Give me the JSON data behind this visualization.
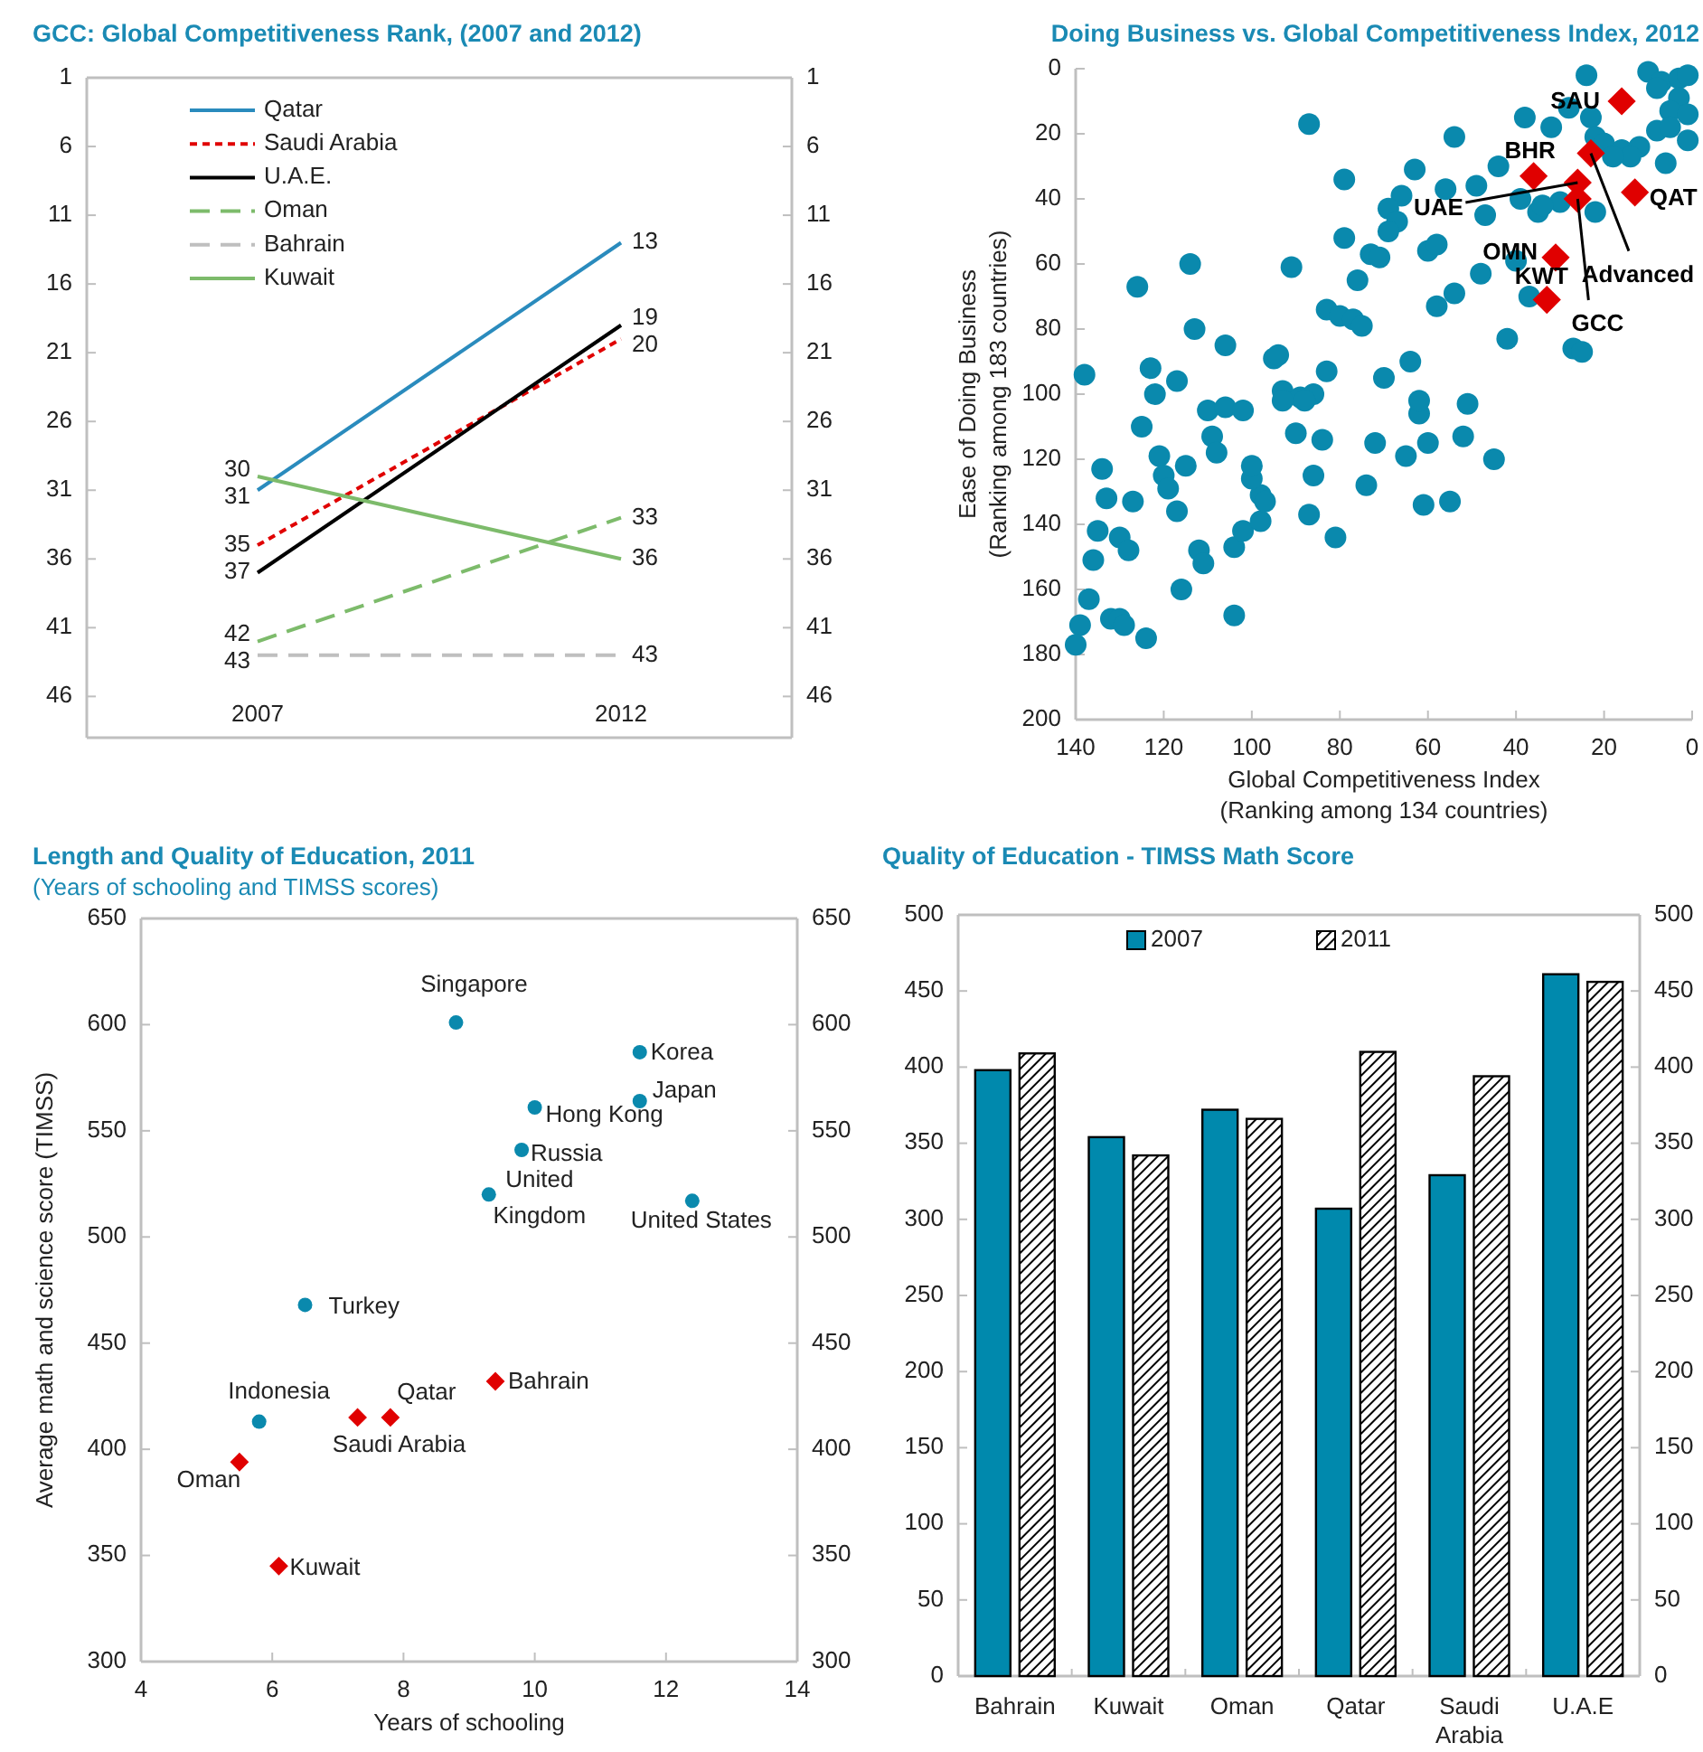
{
  "chart_data": [
    {
      "type": "line",
      "title": "GCC: Global Competitiveness Rank, (2007 and 2012)",
      "categories": [
        "2007",
        "2012"
      ],
      "ylim": [
        49,
        1
      ],
      "yticks": [
        1,
        6,
        11,
        16,
        21,
        26,
        31,
        36,
        41,
        46
      ],
      "y2lim": [
        49,
        1
      ],
      "y2ticks": [
        1,
        6,
        11,
        16,
        21,
        26,
        31,
        36,
        41,
        46
      ],
      "legend": "top left",
      "data_labels": true,
      "series": [
        {
          "name": "Qatar",
          "color": "#2a8bbd",
          "values": [
            31,
            13
          ],
          "line_style": "solid"
        },
        {
          "name": "Saudi Arabia",
          "color": "#e00000",
          "values": [
            35,
            20
          ],
          "line_style": "dotted"
        },
        {
          "name": "U.A.E.",
          "color": "#000000",
          "values": [
            37,
            19
          ],
          "line_style": "solid"
        },
        {
          "name": "Oman",
          "color": "#7dbb6b",
          "values": [
            42,
            33
          ],
          "line_style": "dashed"
        },
        {
          "name": "Bahrain",
          "color": "#bfbfbf",
          "values": [
            43,
            43
          ],
          "line_style": "dashed"
        },
        {
          "name": "Kuwait",
          "color": "#7dbb6b",
          "values": [
            30,
            36
          ],
          "line_style": "solid"
        }
      ]
    },
    {
      "type": "scatter",
      "title": "Doing Business vs. Global Competitiveness Index, 2012",
      "xlabel": "Global Competitiveness Index\n(Ranking among 134 countries)",
      "ylabel": "Ease of Doing Business\n(Ranking among 183 countries)",
      "xlim": [
        140,
        0
      ],
      "xticks": [
        140,
        120,
        100,
        80,
        60,
        40,
        20,
        0
      ],
      "ylim": [
        200,
        0
      ],
      "yticks": [
        0,
        20,
        40,
        60,
        80,
        100,
        120,
        140,
        160,
        180,
        200
      ],
      "series": [
        {
          "color": "#0a89ad",
          "marker": "circle",
          "x": [
            24,
            10,
            7,
            3,
            1,
            8,
            3,
            5,
            1,
            28,
            23,
            38,
            32,
            22,
            20,
            16,
            12,
            8,
            5,
            1,
            6,
            14,
            18,
            87,
            54,
            63,
            44,
            79,
            56,
            49,
            39,
            35,
            30,
            22,
            34,
            66,
            69,
            67,
            69,
            79,
            73,
            71,
            60,
            58,
            47,
            40,
            48,
            54,
            58,
            37,
            76,
            91,
            114,
            126,
            113,
            106,
            83,
            80,
            77,
            75,
            42,
            27,
            25,
            138,
            123,
            122,
            117,
            95,
            94,
            83,
            70,
            64,
            51,
            93,
            89,
            86,
            110,
            106,
            102,
            62,
            125,
            109,
            108,
            121,
            120,
            119,
            115,
            134,
            133,
            127,
            135,
            130,
            128,
            136,
            137,
            139,
            140,
            132,
            130,
            129,
            124,
            116,
            112,
            111,
            117,
            104,
            102,
            98,
            98,
            97,
            100,
            100,
            93,
            88,
            90,
            84,
            86,
            87,
            81,
            74,
            72,
            65,
            62,
            60,
            61,
            55,
            52,
            45,
            104
          ],
          "values": [
            2,
            1,
            4,
            3,
            2,
            6,
            9,
            13,
            14,
            12,
            15,
            15,
            18,
            21,
            23,
            25,
            24,
            19,
            18,
            22,
            29,
            27,
            27,
            17,
            21,
            31,
            30,
            34,
            37,
            36,
            40,
            44,
            41,
            44,
            42,
            39,
            43,
            47,
            50,
            52,
            57,
            58,
            56,
            54,
            45,
            59,
            63,
            69,
            73,
            70,
            65,
            61,
            60,
            67,
            80,
            85,
            74,
            76,
            77,
            79,
            83,
            86,
            87,
            94,
            92,
            100,
            96,
            89,
            88,
            93,
            95,
            90,
            103,
            99,
            101,
            100,
            105,
            104,
            105,
            106,
            110,
            113,
            118,
            119,
            125,
            129,
            122,
            123,
            132,
            133,
            142,
            144,
            148,
            151,
            163,
            171,
            177,
            169,
            169,
            171,
            175,
            160,
            148,
            152,
            136,
            147,
            142,
            139,
            131,
            133,
            126,
            122,
            102,
            102,
            112,
            114,
            125,
            137,
            144,
            128,
            115,
            119,
            102,
            115,
            134,
            133,
            113,
            120,
            168
          ]
        },
        {
          "color": "#e00000",
          "marker": "diamond",
          "x": [
            16,
            36,
            26,
            13,
            31,
            33,
            23,
            26
          ],
          "values": [
            10,
            33,
            35,
            38,
            58,
            71,
            26,
            40
          ]
        }
      ],
      "annotations": [
        {
          "text": "SAU",
          "x": 16,
          "y": 10
        },
        {
          "text": "BHR",
          "x": 36,
          "y": 33
        },
        {
          "text": "UAE",
          "x": 26,
          "y": 35
        },
        {
          "text": "QAT",
          "x": 13,
          "y": 38
        },
        {
          "text": "OMN",
          "x": 31,
          "y": 58
        },
        {
          "text": "KWT",
          "x": 33,
          "y": 71
        },
        {
          "text": "Advanced",
          "x": 23,
          "y": 26
        },
        {
          "text": "GCC",
          "x": 26,
          "y": 40
        }
      ]
    },
    {
      "type": "scatter",
      "title": "Length and Quality of Education, 2011",
      "subtitle": "(Years of schooling and TIMSS scores)",
      "xlabel": "Years of schooling",
      "ylabel": "Average math and science score (TIMSS)",
      "xlim": [
        4,
        14
      ],
      "xticks": [
        4,
        6,
        8,
        10,
        12,
        14
      ],
      "ylim": [
        300,
        650
      ],
      "yticks": [
        300,
        350,
        400,
        450,
        500,
        550,
        600,
        650
      ],
      "y2lim": [
        300,
        650
      ],
      "y2ticks": [
        300,
        350,
        400,
        450,
        500,
        550,
        600,
        650
      ],
      "series": [
        {
          "color": "#0a89ad",
          "marker": "circle",
          "x": [
            8.8,
            11.6,
            11.6,
            10.0,
            9.8,
            9.3,
            12.4,
            6.5,
            5.8
          ],
          "values": [
            601,
            587,
            564,
            561,
            541,
            520,
            517,
            468,
            413
          ]
        },
        {
          "color": "#e00000",
          "marker": "diamond",
          "x": [
            9.4,
            7.8,
            7.3,
            5.5,
            6.1
          ],
          "values": [
            432,
            415,
            415,
            394,
            345
          ]
        }
      ],
      "annotations": [
        {
          "text": "Singapore",
          "x": 8.8,
          "y": 601
        },
        {
          "text": "Korea",
          "x": 11.6,
          "y": 587
        },
        {
          "text": "Japan",
          "x": 11.6,
          "y": 564
        },
        {
          "text": "Hong Kong",
          "x": 10.0,
          "y": 561
        },
        {
          "text": "Russia",
          "x": 9.8,
          "y": 541
        },
        {
          "text": "United\nKingdom",
          "x": 9.3,
          "y": 520
        },
        {
          "text": "United States",
          "x": 12.4,
          "y": 517
        },
        {
          "text": "Turkey",
          "x": 6.5,
          "y": 468
        },
        {
          "text": "Indonesia",
          "x": 5.8,
          "y": 413
        },
        {
          "text": "Bahrain",
          "x": 9.4,
          "y": 432
        },
        {
          "text": "Qatar",
          "x": 7.8,
          "y": 415
        },
        {
          "text": "Saudi Arabia",
          "x": 7.3,
          "y": 415
        },
        {
          "text": "Oman",
          "x": 5.5,
          "y": 394
        },
        {
          "text": "Kuwait",
          "x": 6.1,
          "y": 345
        }
      ]
    },
    {
      "type": "bar",
      "title": "Quality of Education - TIMSS Math Score",
      "categories": [
        "Bahrain",
        "Kuwait",
        "Oman",
        "Qatar",
        "Saudi Arabia",
        "U.A.E"
      ],
      "ylim": [
        0,
        500
      ],
      "yticks": [
        0,
        50,
        100,
        150,
        200,
        250,
        300,
        350,
        400,
        450,
        500
      ],
      "y2lim": [
        0,
        500
      ],
      "y2ticks": [
        0,
        50,
        100,
        150,
        200,
        250,
        300,
        350,
        400,
        450,
        500
      ],
      "legend": "top",
      "series": [
        {
          "name": "2007",
          "color": "#0089ad",
          "values": [
            398,
            354,
            372,
            307,
            329,
            461
          ]
        },
        {
          "name": "2011",
          "color": "#000000",
          "values": [
            409,
            342,
            366,
            410,
            394,
            456
          ]
        }
      ]
    }
  ]
}
